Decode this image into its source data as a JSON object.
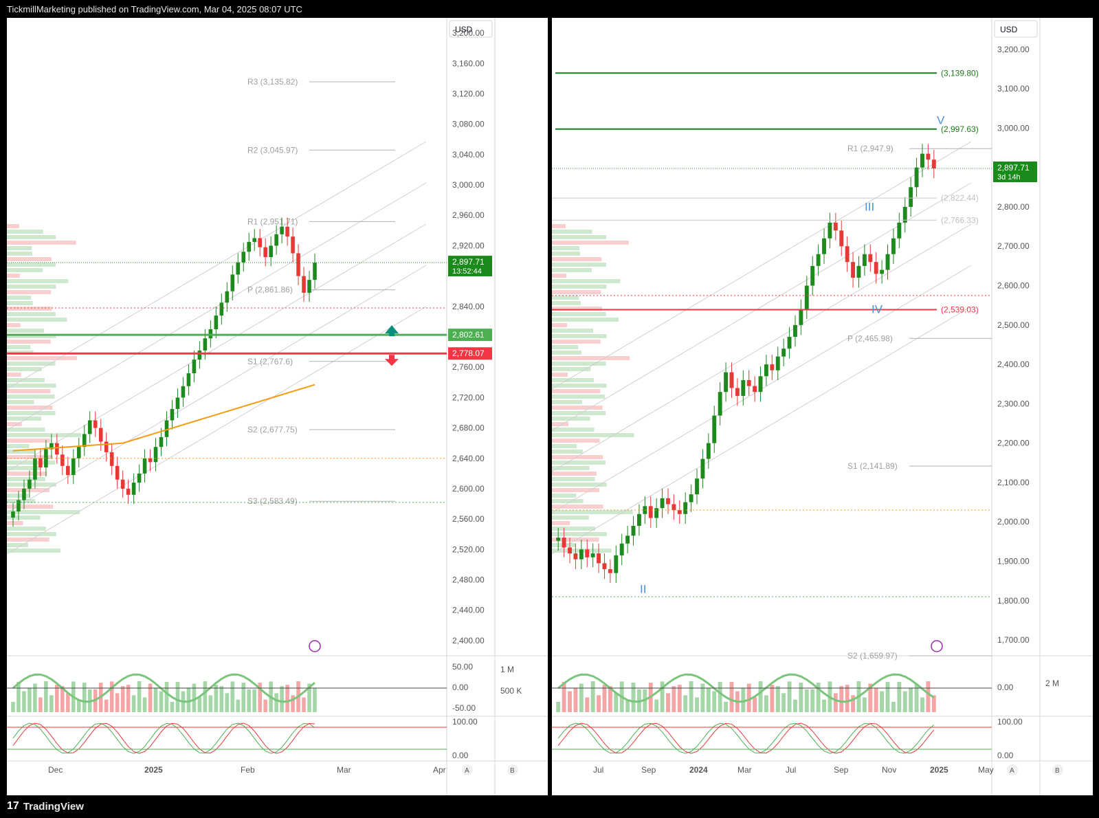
{
  "header": {
    "attribution": "TickmillMarketing published on TradingView.com, Mar 04, 2025 08:07 UTC"
  },
  "footer": {
    "brand": "TradingView",
    "logo_mark": "17"
  },
  "colors": {
    "up": "#1e8a1e",
    "down": "#e53935",
    "support": "#4caf50",
    "resistance": "#f23645",
    "ma": "#f39c12",
    "wave": "#4a90d9",
    "pivot_text": "#9e9e9e"
  },
  "chart_data": [
    {
      "type": "candlestick",
      "currency": "USD",
      "ylim": [
        2380,
        3220
      ],
      "price_ticks": [
        "3,200.00",
        "3,160.00",
        "3,120.00",
        "3,080.00",
        "3,040.00",
        "3,000.00",
        "2,960.00",
        "2,920.00",
        "2,840.00",
        "2,760.00",
        "2,720.00",
        "2,680.00",
        "2,640.00",
        "2,600.00",
        "2,560.00",
        "2,520.00",
        "2,480.00",
        "2,440.00",
        "2,400.00"
      ],
      "time_ticks": [
        "Dec",
        "2025",
        "Feb",
        "Mar",
        "Apr"
      ],
      "last_price": {
        "label": "2,897.71",
        "countdown": "13:52:44",
        "value": 2897.71
      },
      "levels": [
        {
          "label": "2,802.61",
          "value": 2802.61,
          "kind": "support"
        },
        {
          "label": "2,778.07",
          "value": 2778.07,
          "kind": "resistance"
        }
      ],
      "pivots": [
        {
          "label": "R3 (3,135.82)",
          "value": 3135.82
        },
        {
          "label": "R2 (3,045.97)",
          "value": 3045.97
        },
        {
          "label": "R1 (2,951.71)",
          "value": 2951.71
        },
        {
          "label": "P (2,861.86)",
          "value": 2861.86
        },
        {
          "label": "S1 (2,767.6)",
          "value": 2767.6
        },
        {
          "label": "S2 (2,677.75)",
          "value": 2677.75
        },
        {
          "label": "S3 (2,583.49)",
          "value": 2583.49
        }
      ],
      "closes": [
        2570,
        2585,
        2600,
        2612,
        2640,
        2628,
        2652,
        2660,
        2645,
        2630,
        2618,
        2640,
        2655,
        2672,
        2690,
        2680,
        2662,
        2648,
        2630,
        2612,
        2600,
        2592,
        2608,
        2620,
        2640,
        2635,
        2655,
        2668,
        2690,
        2705,
        2720,
        2735,
        2752,
        2770,
        2782,
        2798,
        2810,
        2828,
        2845,
        2860,
        2882,
        2898,
        2912,
        2925,
        2930,
        2918,
        2905,
        2920,
        2935,
        2945,
        2932,
        2910,
        2880,
        2858,
        2875,
        2897.71
      ],
      "oscillator_ticks": [
        "50.00",
        "0.00",
        "-50.00"
      ],
      "volume_ticks": [
        "1 M",
        "500 K"
      ],
      "stoch_ticks": [
        "100.00",
        "0.00"
      ],
      "axis_buttons": [
        "A",
        "B"
      ]
    },
    {
      "type": "candlestick",
      "currency": "USD",
      "ylim": [
        1660,
        3280
      ],
      "price_ticks": [
        "3,200.00",
        "3,100.00",
        "3,000.00",
        "2,800.00",
        "2,700.00",
        "2,600.00",
        "2,500.00",
        "2,400.00",
        "2,300.00",
        "2,200.00",
        "2,100.00",
        "2,000.00",
        "1,900.00",
        "1,800.00",
        "1,700.00"
      ],
      "time_ticks": [
        "Jul",
        "Sep",
        "2024",
        "Mar",
        "Jul",
        "Sep",
        "Nov",
        "2025",
        "May"
      ],
      "last_price": {
        "label": "2,897.71",
        "countdown": "3d 14h",
        "value": 2897.71
      },
      "levels": [
        {
          "label": "(3,139.80)",
          "value": 3139.8,
          "kind": "target"
        },
        {
          "label": "(2,997.63)",
          "value": 2997.63,
          "kind": "target"
        },
        {
          "label": "(2,822.44)",
          "value": 2822.44,
          "kind": "muted"
        },
        {
          "label": "(2,766.33)",
          "value": 2766.33,
          "kind": "muted"
        },
        {
          "label": "(2,539.03)",
          "value": 2539.03,
          "kind": "resistance"
        }
      ],
      "pivots": [
        {
          "label": "R1 (2,947.9)",
          "value": 2947.9
        },
        {
          "label": "P (2,465.98)",
          "value": 2465.98
        },
        {
          "label": "S1 (2,141.89)",
          "value": 2141.89
        },
        {
          "label": "S2 (1,659.97)",
          "value": 1659.97
        }
      ],
      "waves": [
        {
          "label": "II",
          "value": 1820
        },
        {
          "label": "III",
          "value": 2790
        },
        {
          "label": "IV",
          "value": 2530
        },
        {
          "label": "V",
          "value": 3010
        }
      ],
      "closes": [
        1960,
        1935,
        1920,
        1905,
        1930,
        1910,
        1920,
        1895,
        1880,
        1870,
        1915,
        1945,
        1965,
        1990,
        2020,
        2040,
        2010,
        2035,
        2060,
        2045,
        2030,
        2020,
        2050,
        2070,
        2110,
        2160,
        2200,
        2270,
        2330,
        2380,
        2340,
        2320,
        2360,
        2345,
        2330,
        2370,
        2400,
        2385,
        2420,
        2440,
        2470,
        2500,
        2540,
        2600,
        2650,
        2680,
        2720,
        2760,
        2740,
        2700,
        2660,
        2620,
        2650,
        2680,
        2660,
        2630,
        2640,
        2680,
        2720,
        2760,
        2800,
        2850,
        2900,
        2935,
        2920,
        2897.71
      ],
      "oscillator_ticks": [
        "0.00"
      ],
      "volume_ticks": [
        "2 M"
      ],
      "stoch_ticks": [
        "100.00",
        "0.00"
      ],
      "axis_buttons": [
        "A",
        "B"
      ]
    }
  ]
}
